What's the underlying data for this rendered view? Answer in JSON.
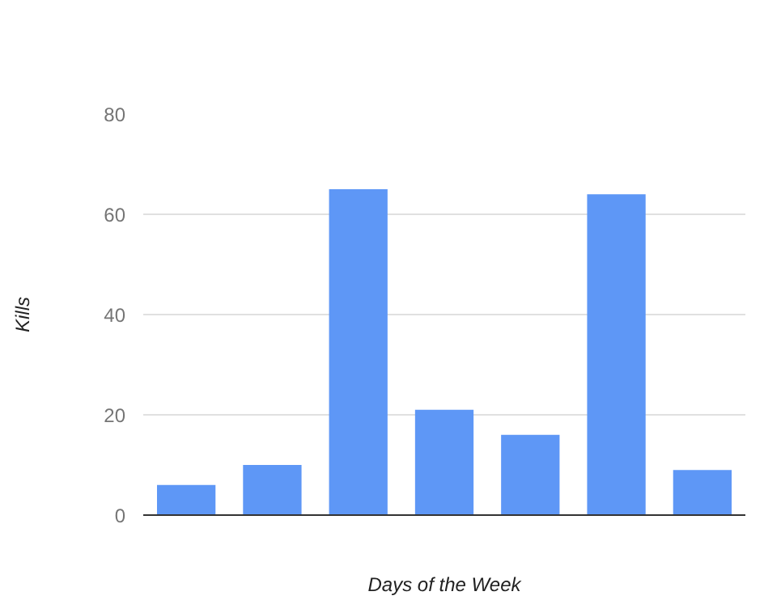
{
  "chart_data": {
    "type": "bar",
    "xlabel": "Days of the Week",
    "ylabel": "Kills",
    "categories": [
      null,
      null,
      null,
      null,
      null,
      null,
      null
    ],
    "values": [
      6,
      10,
      65,
      21,
      16,
      64,
      9
    ],
    "color": "#5e97f6",
    "ylim": [
      0,
      80
    ],
    "yticks": [
      0,
      20,
      40,
      60,
      80
    ],
    "grid": "y"
  }
}
